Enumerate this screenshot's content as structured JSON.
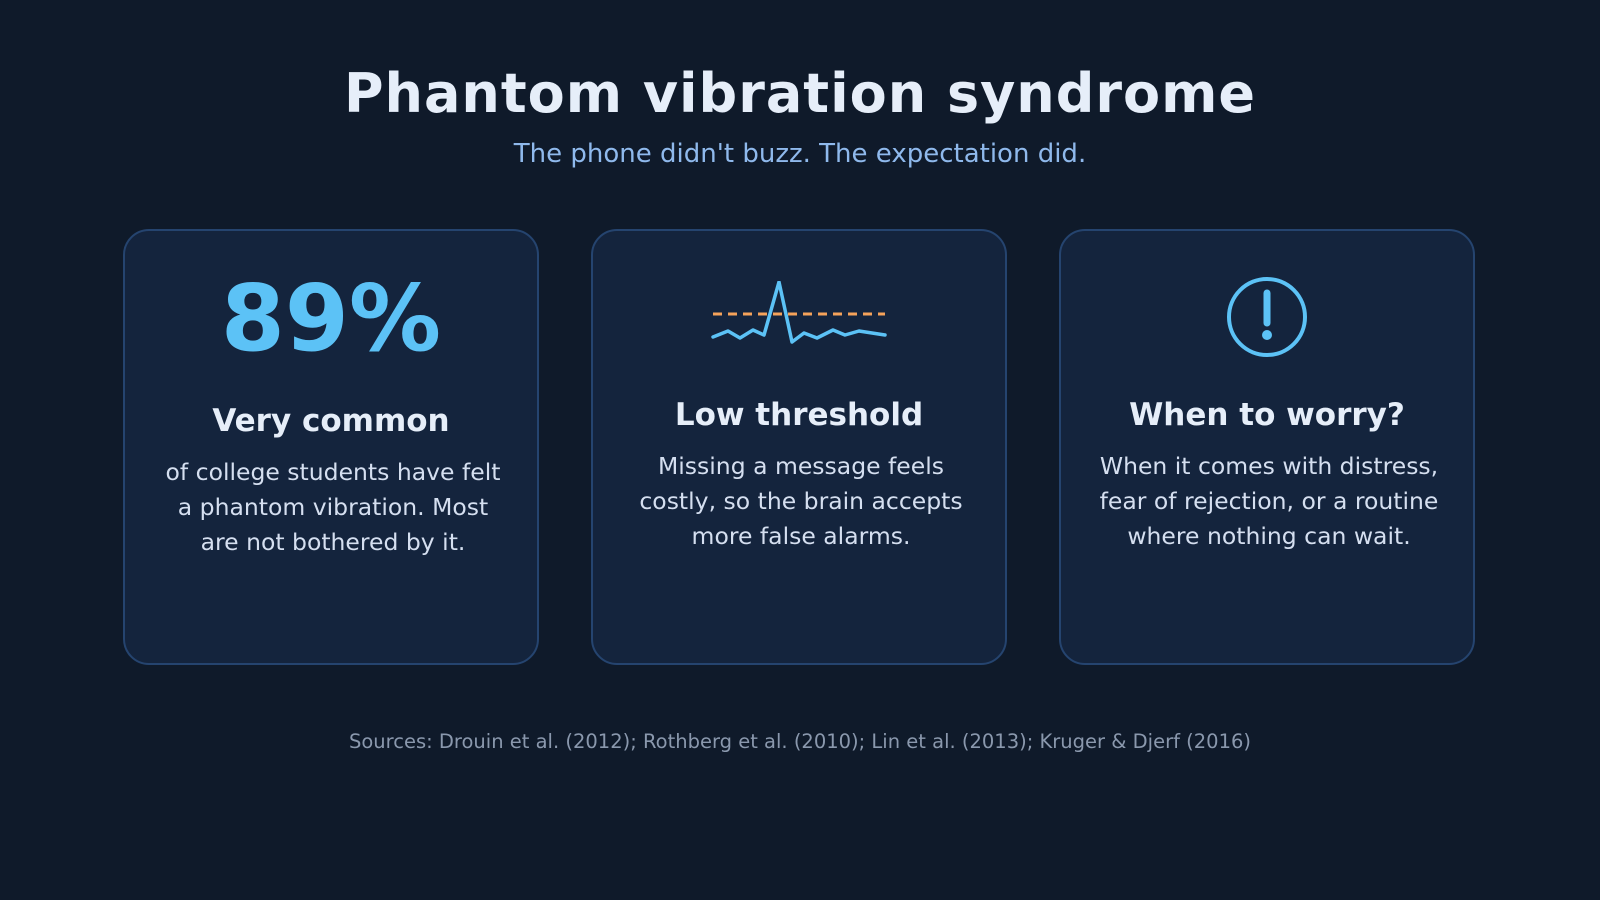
{
  "header": {
    "title": "Phantom vibration syndrome",
    "subtitle": "The phone didn't buzz. The expectation did."
  },
  "cards": [
    {
      "stat": "89%",
      "heading": "Very common",
      "body": "of college students have felt a phantom vibration. Most are not bothered by it."
    },
    {
      "icon": "signal-threshold-icon",
      "heading": "Low threshold",
      "body": "Missing a message feels costly, so the brain accepts more false alarms."
    },
    {
      "icon": "alert-circle-icon",
      "heading": "When to worry?",
      "body": "When it comes with distress, fear of rejection, or a routine where nothing can wait."
    }
  ],
  "footer": {
    "sources": "Sources: Drouin et al. (2012); Rothberg et al. (2010); Lin et al. (2013); Kruger & Djerf (2016)"
  },
  "colors": {
    "background": "#0f1a2a",
    "card": "#14243d",
    "card_border": "#25446f",
    "accent_blue": "#5cc2f6",
    "accent_orange": "#f5a25a",
    "subtitle": "#8fb9ec"
  }
}
